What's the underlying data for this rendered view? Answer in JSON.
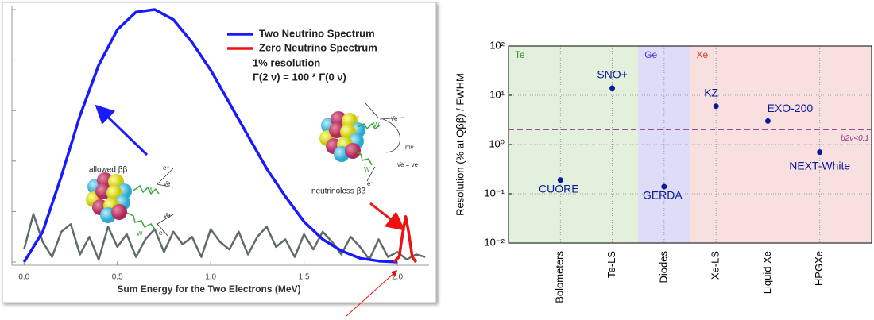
{
  "chart_data": [
    {
      "type": "line",
      "xlabel": "Sum Energy for the Two Electrons (MeV)",
      "xlim": [
        -0.065,
        2.17
      ],
      "xticks": [
        {
          "value": 0,
          "label": "0.0"
        },
        0.5,
        {
          "value": 1,
          "label": "1.0"
        },
        1.5,
        {
          "value": 2,
          "label": "2.0"
        }
      ],
      "ylim": [
        0,
        1
      ],
      "yticks": [
        0,
        0.2,
        0.4,
        0.6,
        0.8,
        1
      ],
      "show_ytick_labels": false,
      "legend": "upper right",
      "series": [
        {
          "name": "Two Neutrino Spectrum",
          "color": "#1a1aff",
          "x": [
            0,
            0.1,
            0.2,
            0.3,
            0.4,
            0.5,
            0.6,
            0.7,
            0.8,
            0.9,
            1.0,
            1.1,
            1.2,
            1.3,
            1.4,
            1.5,
            1.6,
            1.7,
            1.8,
            1.9,
            2.0
          ],
          "values": [
            0,
            0.12,
            0.34,
            0.58,
            0.78,
            0.92,
            0.99,
            1.0,
            0.96,
            0.87,
            0.76,
            0.63,
            0.5,
            0.37,
            0.26,
            0.16,
            0.09,
            0.045,
            0.015,
            0.004,
            0
          ]
        },
        {
          "name": "Zero Neutrino Spectrum",
          "color": "#ee1111",
          "x": [
            1.98,
            2.01,
            2.03,
            2.045,
            2.06,
            2.08,
            2.1
          ],
          "values": [
            0,
            0.02,
            0.12,
            0.18,
            0.12,
            0.02,
            0
          ]
        },
        {
          "color": "#5f6b66",
          "x": [
            0,
            0.05,
            0.1,
            0.15,
            0.2,
            0.25,
            0.3,
            0.35,
            0.4,
            0.45,
            0.5,
            0.55,
            0.6,
            0.65,
            0.7,
            0.75,
            0.8,
            0.85,
            0.9,
            0.95,
            1.0,
            1.05,
            1.1,
            1.15,
            1.2,
            1.25,
            1.3,
            1.35,
            1.4,
            1.45,
            1.5,
            1.55,
            1.6,
            1.65,
            1.7,
            1.75,
            1.8,
            1.85,
            1.9,
            1.95,
            2.0,
            2.05,
            2.1,
            2.15
          ],
          "values": [
            0.05,
            0.19,
            0.08,
            0.02,
            0.12,
            0.15,
            0.03,
            0.1,
            0.01,
            0.14,
            0.06,
            0.11,
            0.02,
            0.09,
            0.13,
            0.04,
            0.12,
            0.07,
            0.1,
            0.02,
            0.13,
            0.08,
            0.05,
            0.12,
            0.03,
            0.1,
            0.14,
            0.06,
            0.09,
            0.02,
            0.11,
            0.05,
            0.12,
            0.08,
            0.03,
            0.1,
            0.06,
            0.01,
            0.09,
            0.02,
            0.04,
            0.01,
            0.03,
            0.02
          ]
        }
      ],
      "annotations": [
        "1% resolution",
        "Γ(2 ν) = 100 *     Γ(0 ν)",
        "allowed ββ",
        "neutrinoless ββ"
      ],
      "diagram_labels": [
        "e⁻",
        "ν̄e",
        "W",
        "W",
        "ν̄e",
        "e⁻",
        "e⁻",
        "ν̄e",
        "W",
        "mν",
        "ν̄e = νe",
        "W",
        "e⁻"
      ]
    },
    {
      "type": "scatter",
      "ylabel": "Resolution (% at Qββ) / FWHM",
      "categories": [
        "Bolometers",
        "Te-LS",
        "Diodes",
        "Xe-LS",
        "Liquid Xe",
        "HPGXe"
      ],
      "values": [
        0.19,
        14,
        0.14,
        6,
        3,
        0.7
      ],
      "point_labels": [
        "CUORE",
        "SNO+",
        "GERDA",
        "KZ",
        "EXO-200",
        "NEXT-White"
      ],
      "color": "#0b1a99",
      "log_y": true,
      "grid": true,
      "ylim": [
        0.01,
        100
      ],
      "yticks": [
        {
          "value": 0.01,
          "label": "10⁻²"
        },
        {
          "value": 0.1,
          "label": "10⁻¹"
        },
        {
          "value": 1,
          "label": "10⁰"
        },
        {
          "value": 10,
          "label": "10¹"
        },
        {
          "value": 100,
          "label": "10²"
        }
      ],
      "regions": [
        {
          "label": "Te",
          "color": "#e2f0dc",
          "text_color": "#2f8f2f",
          "categories": [
            "Bolometers",
            "Te-LS"
          ]
        },
        {
          "label": "Ge",
          "color": "#dedcf6",
          "text_color": "#3b3bd6",
          "categories": [
            "Diodes"
          ]
        },
        {
          "label": "Xe",
          "color": "#f8dfe0",
          "text_color": "#d33a3a",
          "categories": [
            "Xe-LS",
            "Liquid Xe",
            "HPGXe"
          ]
        }
      ],
      "hline": {
        "value": 2,
        "label": "b2ν<0.1",
        "color": "#8a3a8a"
      }
    }
  ]
}
